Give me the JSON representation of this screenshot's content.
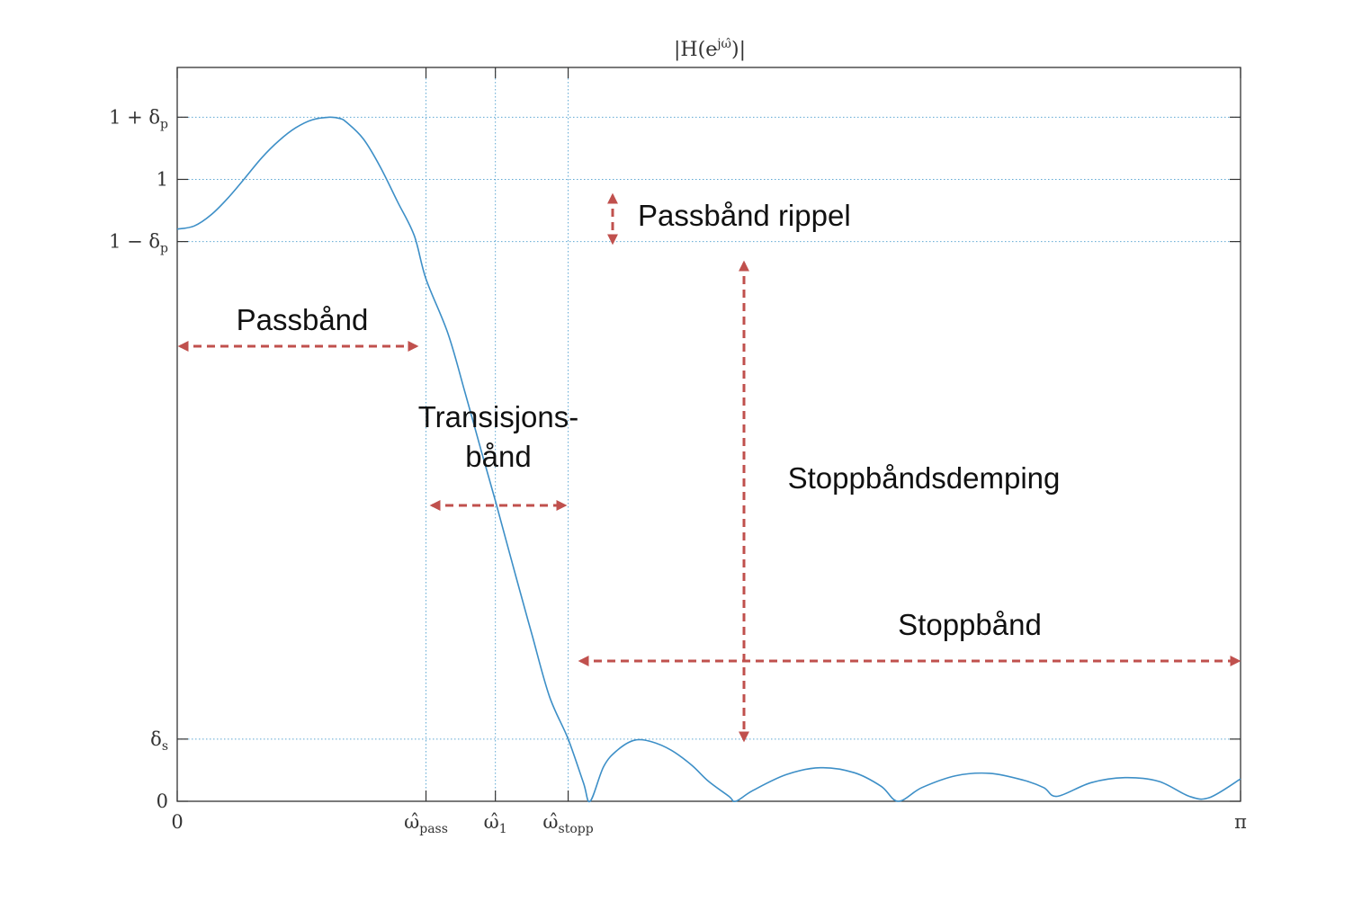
{
  "chart_data": {
    "type": "line",
    "title": "|H(e^{jω̂})|",
    "title_parts": {
      "pre": "|H(e",
      "sup": "jω̂",
      "post": ")|"
    },
    "xlabel": "",
    "ylabel": "",
    "xlim": [
      0,
      3.14159
    ],
    "ylim": [
      0,
      1.18
    ],
    "grid": "dotted reference lines at tick positions",
    "x_ticks": [
      {
        "value": 0,
        "label": "0",
        "sub": ""
      },
      {
        "value": 0.735,
        "label": "ω̂",
        "sub": "pass"
      },
      {
        "value": 0.94,
        "label": "ω̂",
        "sub": "1"
      },
      {
        "value": 1.155,
        "label": "ω̂",
        "sub": "stopp"
      },
      {
        "value": 3.14159,
        "label": "π",
        "sub": ""
      }
    ],
    "y_ticks": [
      {
        "value": 1.1,
        "label": "1 + δ",
        "sub": "p"
      },
      {
        "value": 1.0,
        "label": "1",
        "sub": ""
      },
      {
        "value": 0.9,
        "label": "1 − δ",
        "sub": "p"
      },
      {
        "value": 0.1,
        "label": "δ",
        "sub": "s"
      },
      {
        "value": 0,
        "label": "0",
        "sub": ""
      }
    ],
    "series": [
      {
        "color": "#3d8fc7",
        "x": [
          0,
          0.05,
          0.1,
          0.15,
          0.2,
          0.25,
          0.3,
          0.35,
          0.4,
          0.45,
          0.48,
          0.5,
          0.55,
          0.6,
          0.65,
          0.7,
          0.735,
          0.8,
          0.85,
          0.9,
          0.94,
          1.0,
          1.05,
          1.1,
          1.155,
          1.2,
          1.22,
          1.26,
          1.3,
          1.35,
          1.4,
          1.46,
          1.52,
          1.57,
          1.63,
          1.65,
          1.7,
          1.8,
          1.9,
          2.0,
          2.08,
          2.13,
          2.2,
          2.3,
          2.4,
          2.5,
          2.56,
          2.6,
          2.7,
          2.8,
          2.9,
          2.99,
          3.05,
          3.14159
        ],
        "y": [
          0.92,
          0.925,
          0.943,
          0.97,
          1.002,
          1.035,
          1.062,
          1.083,
          1.096,
          1.1,
          1.098,
          1.092,
          1.065,
          1.02,
          0.965,
          0.91,
          0.84,
          0.752,
          0.658,
          0.56,
          0.483,
          0.363,
          0.264,
          0.168,
          0.1,
          0.03,
          0,
          0.056,
          0.082,
          0.098,
          0.096,
          0.082,
          0.058,
          0.032,
          0.008,
          0,
          0.017,
          0.043,
          0.054,
          0.046,
          0.024,
          0,
          0.022,
          0.041,
          0.045,
          0.034,
          0.022,
          0.008,
          0.03,
          0.038,
          0.032,
          0.008,
          0.006,
          0.036
        ]
      }
    ],
    "annotations": [
      {
        "key": "passband",
        "text": "Passbånd"
      },
      {
        "key": "transition",
        "text": "Transisjons-",
        "text2": "bånd"
      },
      {
        "key": "ripple",
        "text": "Passbånd rippel"
      },
      {
        "key": "attenuation",
        "text": "Stoppbåndsdemping"
      },
      {
        "key": "stopband",
        "text": "Stoppbånd"
      }
    ],
    "colors": {
      "curve": "#3d8fc7",
      "reference_lines": "#5fa8d3",
      "axis": "#333333",
      "arrows": "#c0504d"
    }
  }
}
